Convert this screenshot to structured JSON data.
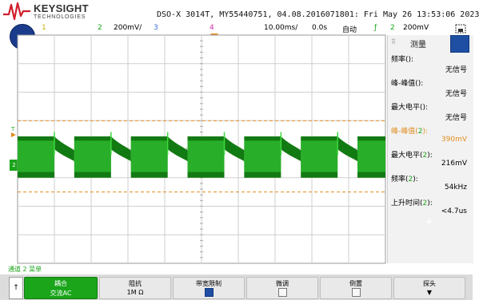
{
  "header": {
    "brand": "KEYSIGHT",
    "brand_sub": "TECHNOLOGIES",
    "device_title": "DSO-X 3014T, MY55440751, 04.08.2016071801: Fri May 26 13:53:06 2023"
  },
  "status_bar": {
    "ch1": "1",
    "ch2": "2",
    "ch2_scale": "200mV/",
    "ch3": "3",
    "ch4": "4",
    "timebase": "10.00ms/",
    "delay": "0.0s",
    "trigger_mode": "自动",
    "trigger_icon": "trigger-edge-icon",
    "trigger_source": "2",
    "trigger_level": "200mV"
  },
  "colors": {
    "ch1": "#e8d600",
    "ch2": "#1aa51a",
    "ch3": "#3a6fd8",
    "ch4": "#d42fa8",
    "trigger": "#e38b1d",
    "waveform_dark": "#127a12",
    "waveform_light": "#3dd83d"
  },
  "waveform": {
    "channel": "2",
    "period_divisions": 1.54,
    "high_block_divisions": 1.0,
    "trigger_level_divisions_above_center": 1.0
  },
  "side_panel": {
    "title": "测量",
    "measurements": [
      {
        "label": "频率(",
        "ch": "",
        "tail": "):",
        "value": "无信号",
        "highlight": false
      },
      {
        "label": "峰-峰值(",
        "ch": "",
        "tail": "):",
        "value": "无信号",
        "highlight": false
      },
      {
        "label": "最大电平(",
        "ch": "",
        "tail": "):",
        "value": "无信号",
        "highlight": false
      },
      {
        "label": "峰-峰值(",
        "ch": "2",
        "tail": "):",
        "value": "390mV",
        "highlight": true
      },
      {
        "label": "最大电平(",
        "ch": "2",
        "tail": "):",
        "value": "216mV",
        "highlight": false
      },
      {
        "label": "频率(",
        "ch": "2",
        "tail": "):",
        "value": "54kHz",
        "highlight": false
      },
      {
        "label": "上升时间(",
        "ch": "2",
        "tail": "):",
        "value": "<4.7us",
        "highlight": false
      }
    ],
    "add_label": "+"
  },
  "softkeys": {
    "menu_title": "通道 2 菜单",
    "up_arrow": "↑",
    "items": [
      {
        "l1": "耦合",
        "l2": "交流AC"
      },
      {
        "l1": "阻抗",
        "l2": "1M Ω"
      },
      {
        "l1": "带宽限制",
        "l2": ""
      },
      {
        "l1": "微调",
        "l2": ""
      },
      {
        "l1": "倒置",
        "l2": ""
      },
      {
        "l1": "探头",
        "l2": "▼"
      }
    ]
  }
}
